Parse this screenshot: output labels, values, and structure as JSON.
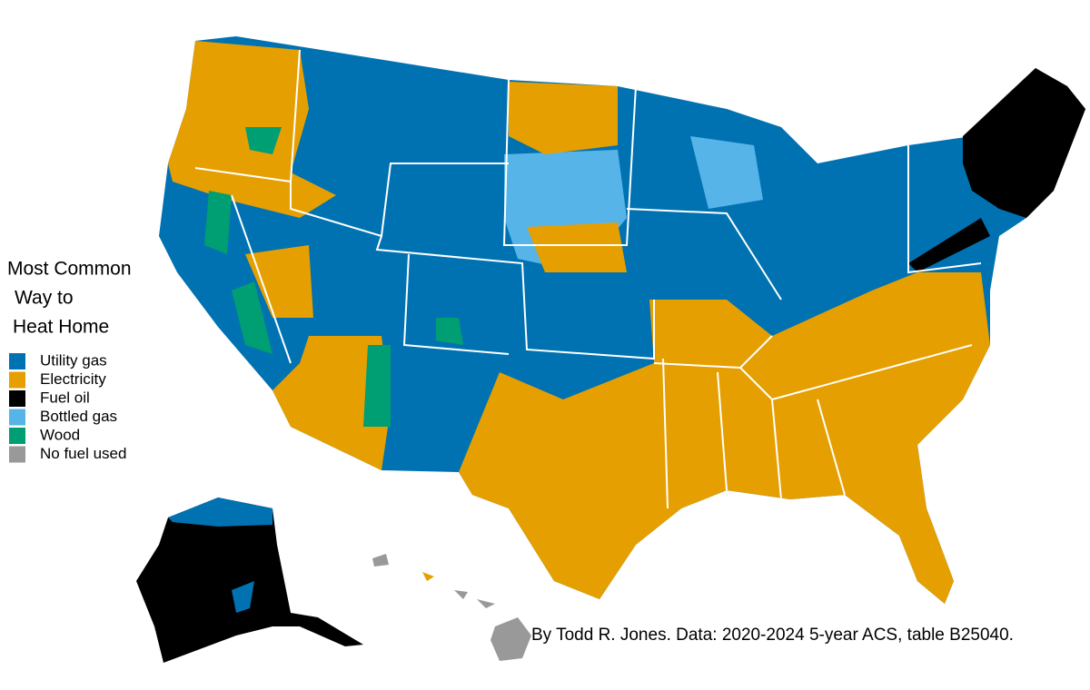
{
  "legend": {
    "title": [
      "Most Common",
      "Way to",
      "Heat Home"
    ],
    "items": [
      {
        "label": "Utility gas",
        "color": "#0072b2"
      },
      {
        "label": "Electricity",
        "color": "#e69f00"
      },
      {
        "label": "Fuel oil",
        "color": "#000000"
      },
      {
        "label": "Bottled gas",
        "color": "#56b4e9"
      },
      {
        "label": "Wood",
        "color": "#009e73"
      },
      {
        "label": "No fuel used",
        "color": "#999999"
      }
    ]
  },
  "credit": "By Todd R. Jones. Data: 2020-2024 5-year ACS, table B25040."
}
